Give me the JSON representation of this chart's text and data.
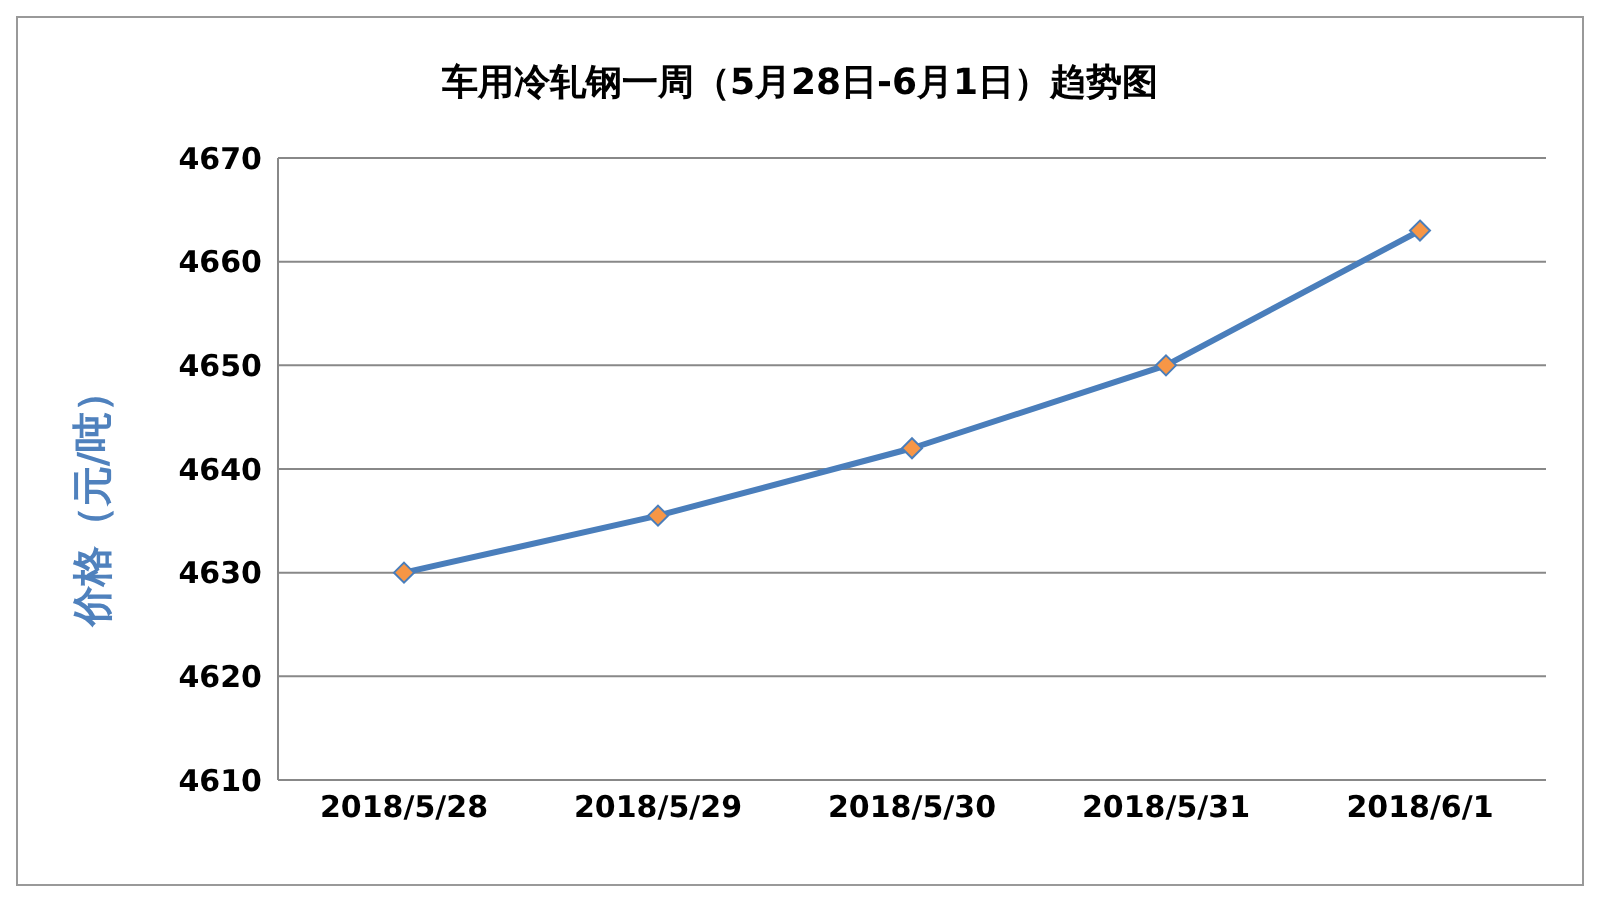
{
  "chart_data": {
    "type": "line",
    "title": "车用冷轧钢一周（5月28日-6月1日）趋势图",
    "ylabel": "价格（元/吨）",
    "categories": [
      "2018/5/28",
      "2018/5/29",
      "2018/5/30",
      "2018/5/31",
      "2018/6/1"
    ],
    "series": [
      {
        "color": "#4a7ebb",
        "values": [
          4630,
          4635.5,
          4642,
          4650,
          4663
        ]
      }
    ],
    "ylim": [
      4610,
      4670
    ],
    "yticks": [
      4610,
      4620,
      4630,
      4640,
      4650,
      4660,
      4670
    ],
    "grid": "y",
    "marker": "diamond",
    "line_style": "solid"
  }
}
